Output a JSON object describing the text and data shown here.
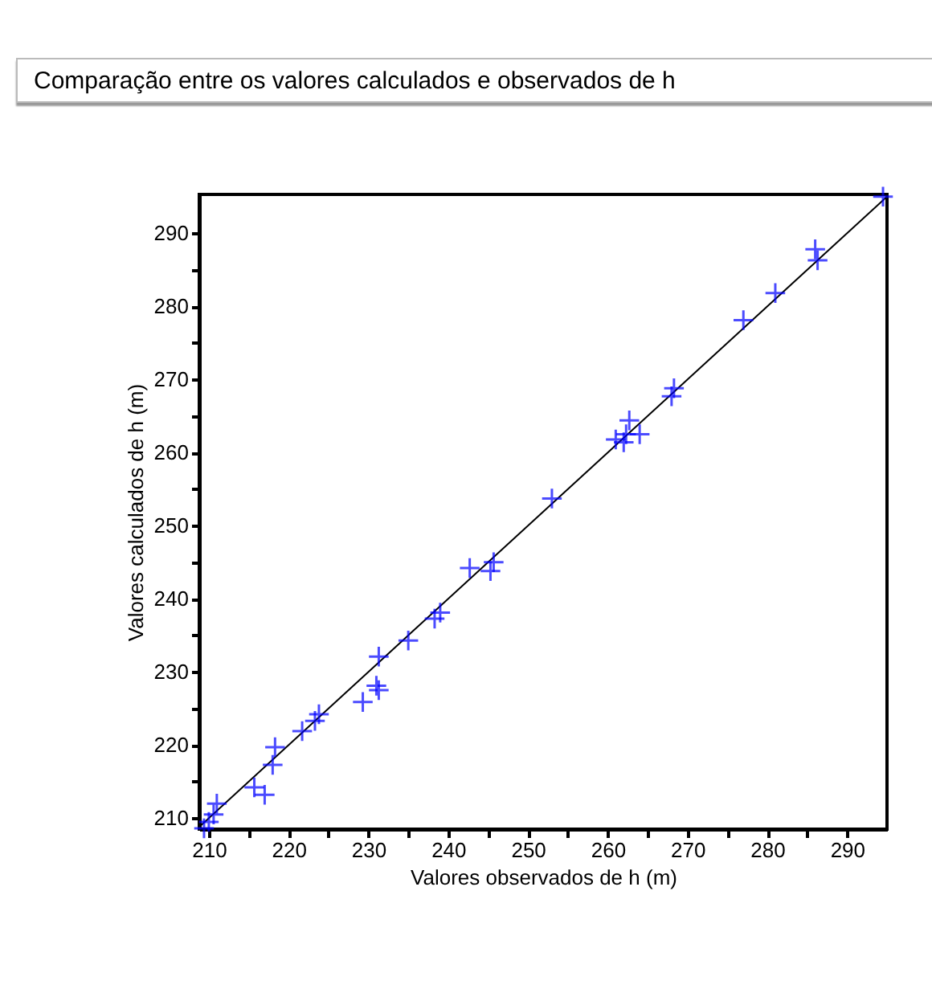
{
  "chart_data": {
    "type": "scatter",
    "title": "Comparação entre os valores calculados e observados de h",
    "xlabel": "Valores observados de h (m)",
    "ylabel": "Valores calculados de h (m)",
    "x": [
      209.4,
      210,
      210.6,
      211,
      215.7,
      217,
      218,
      218.3,
      221.7,
      223.3,
      223.8,
      229.3,
      231,
      231.3,
      231.3,
      235,
      238.3,
      239,
      242.7,
      245.3,
      245.7,
      253,
      261,
      262,
      262.7,
      262.3,
      264,
      268,
      268.3,
      277,
      281,
      286,
      286.3,
      294.5
    ],
    "series": [
      {
        "color": "#0000ff",
        "values": [
          208.6,
          209.5,
          210.5,
          212,
          214.2,
          213.2,
          217.3,
          219.7,
          221.9,
          223.3,
          224.2,
          225.9,
          228.1,
          227.5,
          232.1,
          234.3,
          237.3,
          238.1,
          244.2,
          243.8,
          245,
          253.7,
          261.8,
          261.4,
          264.4,
          262.5,
          262.5,
          267.7,
          268.8,
          278.1,
          281.8,
          287.8,
          286.3,
          295
        ]
      },
      {
        "type": "line",
        "marker": "none",
        "color": "#000000",
        "x": [
          208.8,
          295
        ],
        "values": [
          208.8,
          295
        ]
      }
    ],
    "xlim": [
      208.8,
      295
    ],
    "ylim": [
      208.5,
      295.3
    ],
    "xticks": [
      210,
      {
        "value": 215,
        "label": null
      },
      220,
      {
        "value": 225,
        "label": null
      },
      230,
      {
        "value": 235,
        "label": null
      },
      240,
      {
        "value": 245,
        "label": null
      },
      250,
      {
        "value": 255,
        "label": null
      },
      260,
      {
        "value": 265,
        "label": null
      },
      270,
      {
        "value": 275,
        "label": null
      },
      280,
      {
        "value": 285,
        "label": null
      },
      290
    ],
    "yticks": [
      210,
      {
        "value": 215,
        "label": null
      },
      220,
      {
        "value": 225,
        "label": null
      },
      230,
      {
        "value": 235,
        "label": null
      },
      240,
      {
        "value": 245,
        "label": null
      },
      250,
      {
        "value": 255,
        "label": null
      },
      260,
      {
        "value": 265,
        "label": null
      },
      270,
      {
        "value": 275,
        "label": null
      },
      280,
      {
        "value": 285,
        "label": null
      },
      290
    ],
    "marker": "cross",
    "grid": false
  }
}
